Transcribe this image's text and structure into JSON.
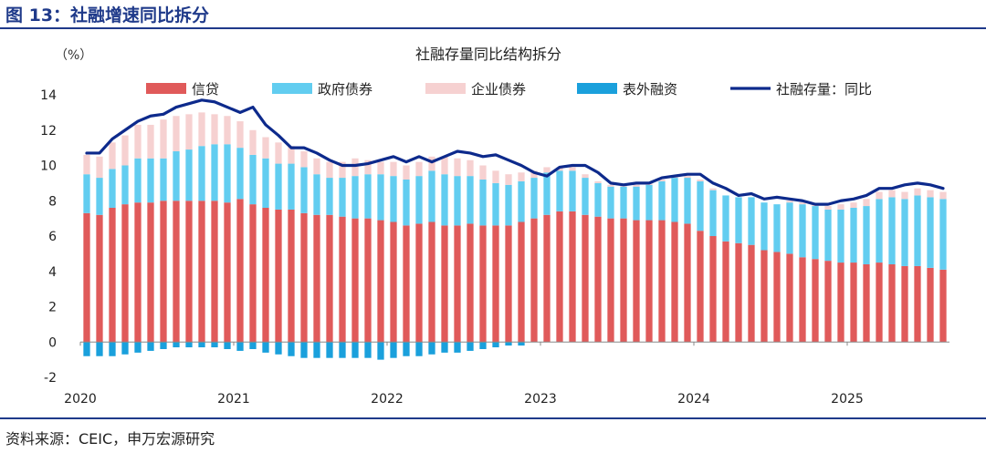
{
  "figure_title": "图 13：社融增速同比拆分",
  "source": "资料来源：CEIC，申万宏源研究",
  "chart_data": {
    "type": "bar",
    "title": "社融存量同比结构拆分",
    "ylabel": "（%）",
    "ylim": [
      -2,
      14
    ],
    "yticks": [
      -2,
      0,
      2,
      4,
      6,
      8,
      10,
      12,
      14
    ],
    "grid": false,
    "legend_position": "top",
    "x_tick_labels": [
      "2020",
      "2021",
      "2022",
      "2023",
      "2024",
      "2025"
    ],
    "x_tick_index": [
      0,
      12,
      24,
      36,
      48,
      60
    ],
    "colors": {
      "credit": "#e05a5a",
      "gov_bonds": "#62cdf0",
      "corp_bonds": "#f6d1d1",
      "off_balance": "#1aa0dc",
      "tsf_yoy": "#0d2a8c"
    },
    "series": [
      {
        "name": "信贷",
        "key": "credit",
        "kind": "bar",
        "values": [
          7.3,
          7.2,
          7.6,
          7.8,
          7.9,
          7.9,
          8.0,
          8.0,
          8.0,
          8.0,
          8.0,
          7.9,
          8.1,
          7.8,
          7.6,
          7.5,
          7.5,
          7.3,
          7.2,
          7.2,
          7.1,
          7.0,
          7.0,
          6.9,
          6.8,
          6.6,
          6.7,
          6.8,
          6.6,
          6.6,
          6.7,
          6.6,
          6.6,
          6.6,
          6.8,
          7.0,
          7.2,
          7.4,
          7.4,
          7.2,
          7.1,
          7.0,
          7.0,
          6.9,
          6.9,
          6.9,
          6.8,
          6.7,
          6.3,
          6.0,
          5.7,
          5.6,
          5.5,
          5.2,
          5.1,
          5.0,
          4.8,
          4.7,
          4.6,
          4.5,
          4.5,
          4.4,
          4.5,
          4.4,
          4.3,
          4.3,
          4.2,
          4.1
        ]
      },
      {
        "name": "政府债券",
        "key": "gov_bonds",
        "kind": "bar",
        "values": [
          2.2,
          2.1,
          2.2,
          2.2,
          2.5,
          2.5,
          2.4,
          2.8,
          2.9,
          3.1,
          3.2,
          3.3,
          2.9,
          2.8,
          2.8,
          2.6,
          2.6,
          2.6,
          2.3,
          2.1,
          2.2,
          2.4,
          2.5,
          2.6,
          2.6,
          2.6,
          2.7,
          2.9,
          2.9,
          2.8,
          2.7,
          2.6,
          2.4,
          2.3,
          2.3,
          2.3,
          2.4,
          2.3,
          2.3,
          2.1,
          1.9,
          1.8,
          1.8,
          1.9,
          2.0,
          2.2,
          2.5,
          2.6,
          2.8,
          2.6,
          2.6,
          2.6,
          2.7,
          2.7,
          2.7,
          2.9,
          3.0,
          3.0,
          2.9,
          3.0,
          3.1,
          3.3,
          3.6,
          3.8,
          3.8,
          4.0,
          4.0,
          4.0
        ]
      },
      {
        "name": "企业债券",
        "key": "corp_bonds",
        "kind": "bar",
        "values": [
          1.1,
          1.2,
          1.5,
          1.7,
          1.9,
          1.9,
          2.2,
          2.0,
          2.0,
          1.9,
          1.7,
          1.6,
          1.5,
          1.4,
          1.2,
          1.2,
          1.0,
          0.9,
          0.9,
          0.9,
          0.9,
          1.0,
          0.8,
          0.7,
          0.8,
          0.8,
          0.8,
          0.8,
          1.0,
          1.0,
          0.9,
          0.8,
          0.7,
          0.6,
          0.5,
          0.4,
          0.3,
          0.2,
          0.2,
          0.2,
          0.1,
          0.1,
          0.1,
          0.1,
          0.1,
          0.1,
          0.1,
          0.1,
          0.1,
          0.1,
          0.0,
          0.0,
          0.0,
          0.0,
          0.0,
          0.1,
          0.1,
          0.1,
          0.2,
          0.3,
          0.3,
          0.4,
          0.4,
          0.4,
          0.4,
          0.4,
          0.4,
          0.4
        ]
      },
      {
        "name": "表外融资",
        "key": "off_balance",
        "kind": "bar",
        "values": [
          -0.8,
          -0.8,
          -0.8,
          -0.7,
          -0.6,
          -0.5,
          -0.4,
          -0.3,
          -0.3,
          -0.3,
          -0.3,
          -0.4,
          -0.5,
          -0.4,
          -0.6,
          -0.7,
          -0.8,
          -0.9,
          -0.9,
          -0.9,
          -0.9,
          -0.9,
          -0.9,
          -1.0,
          -0.9,
          -0.8,
          -0.8,
          -0.7,
          -0.6,
          -0.6,
          -0.5,
          -0.4,
          -0.3,
          -0.2,
          -0.2,
          0.0,
          0.0,
          0.0,
          0.0,
          0.0,
          0.0,
          0.0,
          0.0,
          0.0,
          0.0,
          0.0,
          0.0,
          0.0,
          0.0,
          0.0,
          0.0,
          0.0,
          0.0,
          0.0,
          0.0,
          0.0,
          0.0,
          0.0,
          0.0,
          0.0,
          0.0,
          0.0,
          0.0,
          0.0,
          0.0,
          0.0,
          0.0,
          0.0
        ]
      },
      {
        "name": "社融存量：同比",
        "key": "tsf_yoy",
        "kind": "line",
        "values": [
          10.7,
          10.7,
          11.5,
          12.0,
          12.5,
          12.8,
          12.9,
          13.3,
          13.5,
          13.7,
          13.6,
          13.3,
          13.0,
          13.3,
          12.3,
          11.7,
          11.0,
          11.0,
          10.7,
          10.3,
          10.0,
          10.0,
          10.1,
          10.3,
          10.5,
          10.2,
          10.5,
          10.2,
          10.5,
          10.8,
          10.7,
          10.5,
          10.6,
          10.3,
          10.0,
          9.6,
          9.4,
          9.9,
          10.0,
          10.0,
          9.6,
          9.0,
          8.9,
          9.0,
          9.0,
          9.3,
          9.4,
          9.5,
          9.5,
          9.0,
          8.7,
          8.3,
          8.4,
          8.1,
          8.2,
          8.1,
          8.0,
          7.8,
          7.8,
          8.0,
          8.1,
          8.3,
          8.7,
          8.7,
          8.9,
          9.0,
          8.9,
          8.7
        ]
      }
    ]
  }
}
